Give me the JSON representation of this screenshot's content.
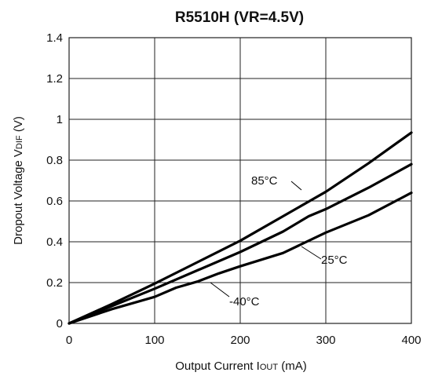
{
  "chart_data": {
    "type": "line",
    "title": "R5510H (VR=4.5V)",
    "xlabel": {
      "main": "Output Current I",
      "sub": "OUT",
      "tail": " (mA)"
    },
    "ylabel": {
      "main": "Dropout Voltage V",
      "sub": "DIF",
      "tail": " (V)"
    },
    "xlim": [
      0,
      400
    ],
    "ylim": [
      0,
      1.4
    ],
    "x_ticks": [
      0,
      100,
      200,
      300,
      400
    ],
    "y_ticks": [
      0,
      0.2,
      0.4,
      0.6,
      0.8,
      1,
      1.2,
      1.4
    ],
    "x_tick_labels": [
      "0",
      "100",
      "200",
      "300",
      "400"
    ],
    "y_tick_labels": [
      "0",
      "0.2",
      "0.4",
      "0.6",
      "0.8",
      "1",
      "1.2",
      "1.4"
    ],
    "grid": true,
    "series": [
      {
        "name": "85°C",
        "x": [
          0,
          50,
          100,
          150,
          200,
          250,
          300,
          350,
          400
        ],
        "y": [
          0,
          0.095,
          0.195,
          0.3,
          0.405,
          0.525,
          0.645,
          0.785,
          0.935
        ]
      },
      {
        "name": "25°C",
        "x": [
          0,
          50,
          100,
          150,
          200,
          250,
          280,
          300,
          350,
          400
        ],
        "y": [
          0,
          0.085,
          0.17,
          0.26,
          0.35,
          0.45,
          0.525,
          0.56,
          0.665,
          0.78
        ]
      },
      {
        "name": "-40°C",
        "x": [
          0,
          50,
          100,
          125,
          150,
          175,
          200,
          250,
          300,
          350,
          400
        ],
        "y": [
          0,
          0.07,
          0.13,
          0.175,
          0.205,
          0.245,
          0.28,
          0.345,
          0.445,
          0.53,
          0.64
        ]
      }
    ]
  }
}
